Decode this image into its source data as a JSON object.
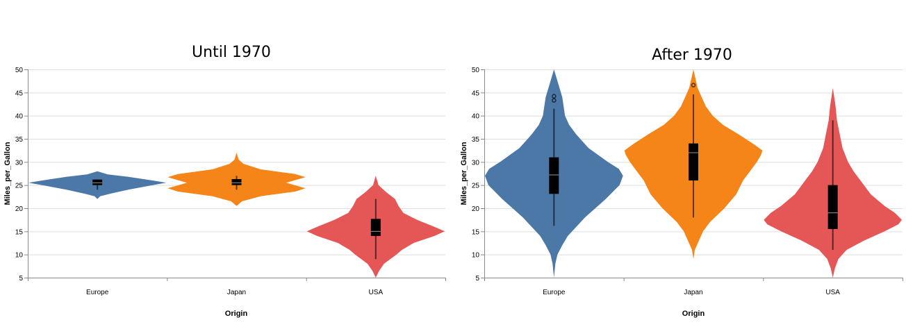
{
  "chart_data": [
    {
      "type": "violin",
      "title": "Until 1970",
      "xlabel": "Origin",
      "ylabel": "Miles_per_Gallon",
      "ylim": [
        5,
        50
      ],
      "yticks": [
        5,
        10,
        15,
        20,
        25,
        30,
        35,
        40,
        45,
        50
      ],
      "grid": true,
      "categories": [
        "Europe",
        "Japan",
        "USA"
      ],
      "series": [
        {
          "name": "Europe",
          "color": "#4c78a8",
          "density_range": [
            22,
            28
          ],
          "density_peak": 25.5,
          "box": {
            "whisker_low": 24,
            "q1": 25,
            "median": 25.5,
            "q3": 26.2,
            "whisker_high": 26.2
          },
          "outliers": []
        },
        {
          "name": "Japan",
          "color": "#f58518",
          "density_range": [
            20.5,
            32
          ],
          "density_peak": 27,
          "box": {
            "whisker_low": 24,
            "q1": 25,
            "median": 25.5,
            "q3": 26.3,
            "whisker_high": 27
          },
          "outliers": []
        },
        {
          "name": "USA",
          "color": "#e45756",
          "density_range": [
            5,
            28
          ],
          "density_peak": 15,
          "box": {
            "whisker_low": 9,
            "q1": 14,
            "median": 15,
            "q3": 17.7,
            "whisker_high": 22
          },
          "outliers": []
        }
      ]
    },
    {
      "type": "violin",
      "title": "After 1970",
      "xlabel": "Origin",
      "ylabel": "Miles_per_Gallon",
      "ylim": [
        5,
        50
      ],
      "yticks": [
        5,
        10,
        15,
        20,
        25,
        30,
        35,
        40,
        45,
        50
      ],
      "grid": true,
      "categories": [
        "Europe",
        "Japan",
        "USA"
      ],
      "series": [
        {
          "name": "Europe",
          "color": "#4c78a8",
          "density_range": [
            5,
            50
          ],
          "density_peak": 27,
          "box": {
            "whisker_low": 16.2,
            "q1": 23.1,
            "median": 27.2,
            "q3": 31,
            "whisker_high": 41.5
          },
          "outliers": [
            43.3,
            44.2
          ]
        },
        {
          "name": "Japan",
          "color": "#f58518",
          "density_range": [
            9,
            50
          ],
          "density_peak": 32.5,
          "box": {
            "whisker_low": 18,
            "q1": 26,
            "median": 32,
            "q3": 34,
            "whisker_high": 44.6
          },
          "outliers": [
            46.6
          ]
        },
        {
          "name": "USA",
          "color": "#e45756",
          "density_range": [
            5,
            46
          ],
          "density_peak": 17,
          "box": {
            "whisker_low": 11,
            "q1": 15.5,
            "median": 19,
            "q3": 25,
            "whisker_high": 39
          },
          "outliers": []
        }
      ]
    }
  ]
}
